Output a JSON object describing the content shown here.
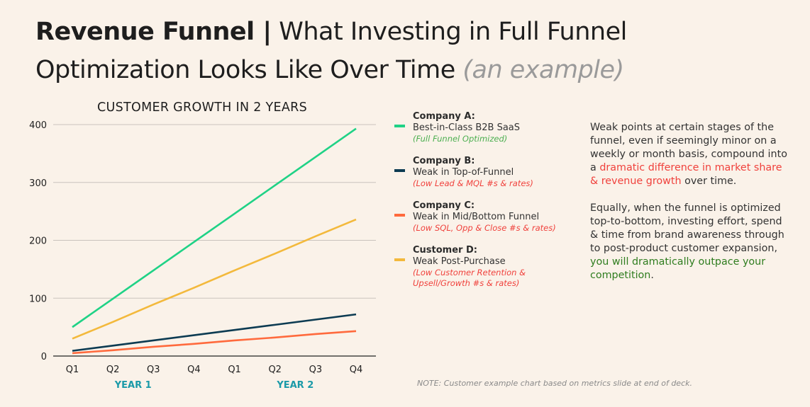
{
  "header": {
    "title_bold": "Revenue Funnel |",
    "title_line1_rest": "What Investing in Full Funnel",
    "title_line2": "Optimization Looks Like Over Time",
    "title_example": "(an example)"
  },
  "chart_data": {
    "type": "line",
    "title": "CUSTOMER GROWTH IN 2 YEARS",
    "categories": [
      "Q1",
      "Q2",
      "Q3",
      "Q4",
      "Q1",
      "Q2",
      "Q3",
      "Q4"
    ],
    "group_labels": [
      "YEAR 1",
      "YEAR 2"
    ],
    "ylim": [
      0,
      400
    ],
    "yticks": [
      0,
      100,
      200,
      300,
      400
    ],
    "grid": true,
    "legend_placement": "right",
    "series": [
      {
        "name": "Company A",
        "color": "#1fd286",
        "values": [
          50,
          99,
          148,
          197,
          246,
          295,
          344,
          393
        ]
      },
      {
        "name": "Company B",
        "color": "#0c3b52",
        "values": [
          9,
          18,
          27,
          36,
          45,
          54,
          63,
          72
        ]
      },
      {
        "name": "Company C",
        "color": "#ff6a3d",
        "values": [
          5,
          10,
          16,
          21,
          27,
          32,
          38,
          43
        ]
      },
      {
        "name": "Customer D",
        "color": "#f3b93c",
        "values": [
          30,
          59,
          89,
          118,
          148,
          177,
          207,
          236
        ]
      }
    ]
  },
  "legend": [
    {
      "name": "Company A:",
      "desc": "Best-in-Class B2B SaaS",
      "note": "(Full Funnel Optimized)",
      "note_color": "#4caf50",
      "color": "#1fd286"
    },
    {
      "name": "Company B:",
      "desc": "Weak in Top-of-Funnel",
      "note": "(Low Lead & MQL #s & rates)",
      "note_color": "#f0413c",
      "color": "#0c3b52"
    },
    {
      "name": "Company C:",
      "desc": "Weak in Mid/Bottom Funnel",
      "note": "(Low SQL, Opp & Close #s & rates)",
      "note_color": "#f0413c",
      "color": "#ff6a3d"
    },
    {
      "name": "Customer D:",
      "desc": "Weak Post-Purchase",
      "note": "(Low Customer Retention & Upsell/Growth #s & rates)",
      "note_color": "#f0413c",
      "color": "#f3b93c"
    }
  ],
  "body": {
    "p1_a": "Weak points at certain stages of the funnel, even if seemingly minor on a weekly or month basis, compound into a ",
    "p1_red": "dramatic difference in market share & revenue growth",
    "p1_b": " over time.",
    "p2_a": "Equally, when the funnel is optimized top-to-bottom, investing effort, spend & time from brand awareness through to post-product customer expansion, ",
    "p2_green": "you will dramatically outpace your competition",
    "p2_b": "."
  },
  "note": "NOTE: Customer example chart based on metrics slide at end of deck.",
  "colors": {
    "background": "#faf2e9",
    "highlight_red": "#f0413c",
    "highlight_green": "#2f7d1f",
    "year_label": "#1a9aa8"
  }
}
